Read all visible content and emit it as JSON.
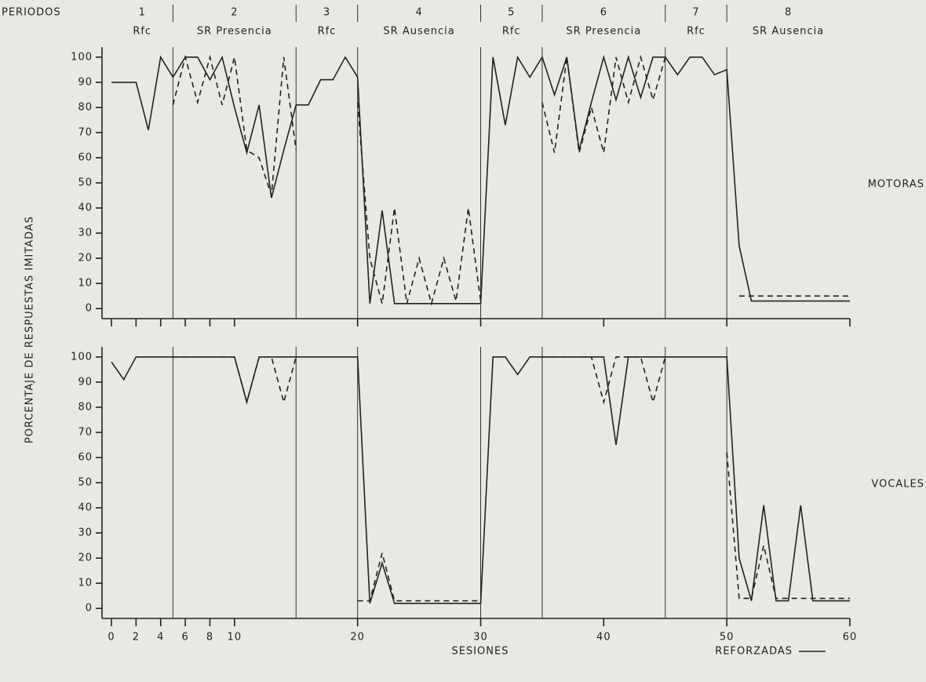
{
  "periods_header": "PERIODOS",
  "periods": [
    {
      "number": 1,
      "label": "Rfc"
    },
    {
      "number": 2,
      "label": "SR Presencia"
    },
    {
      "number": 3,
      "label": "Rfc"
    },
    {
      "number": 4,
      "label": "SR Ausencia"
    },
    {
      "number": 5,
      "label": "Rfc"
    },
    {
      "number": 6,
      "label": "SR Presencia"
    },
    {
      "number": 7,
      "label": "Rfc"
    },
    {
      "number": 8,
      "label": "SR Ausencia"
    }
  ],
  "period_boundaries": [
    5,
    15,
    20,
    30,
    35,
    45,
    50
  ],
  "y_label": "PORCENTAJE DE RESPUESTAS IMITADAS",
  "x_label": "SESIONES",
  "chart_data": [
    {
      "type": "line",
      "title": "MOTORAS",
      "x": [
        0,
        1,
        2,
        3,
        4,
        5,
        6,
        7,
        8,
        9,
        10,
        11,
        12,
        13,
        14,
        15,
        16,
        17,
        18,
        19,
        20,
        21,
        22,
        23,
        24,
        25,
        26,
        27,
        28,
        29,
        30,
        31,
        32,
        33,
        34,
        35,
        36,
        37,
        38,
        39,
        40,
        41,
        42,
        43,
        44,
        45,
        46,
        47,
        48,
        49,
        50,
        51,
        52,
        53,
        54,
        55,
        56,
        57,
        58,
        59,
        60
      ],
      "xlim": [
        0,
        60
      ],
      "ylim": [
        -4,
        104
      ],
      "yticks": [
        0,
        10,
        20,
        30,
        40,
        50,
        60,
        70,
        80,
        90,
        100
      ],
      "series": [
        {
          "name": "REFORZADAS",
          "color": "#222222",
          "style": "solid",
          "values": [
            90,
            90,
            90,
            71,
            100,
            92,
            100,
            100,
            91,
            100,
            80,
            62,
            81,
            44,
            63,
            81,
            81,
            91,
            91,
            100,
            92,
            2,
            39,
            2,
            2,
            2,
            2,
            2,
            2,
            2,
            2,
            100,
            73,
            100,
            92,
            100,
            85,
            100,
            63,
            82,
            100,
            83,
            100,
            84,
            100,
            100,
            93,
            100,
            100,
            93,
            95,
            25,
            3,
            3,
            3,
            3,
            3,
            3,
            3,
            3,
            3
          ]
        },
        {
          "color": "#222222",
          "style": "dashed",
          "values": [
            null,
            null,
            null,
            null,
            null,
            81,
            100,
            82,
            100,
            81,
            100,
            63,
            60,
            45,
            100,
            63,
            null,
            null,
            null,
            null,
            82,
            20,
            2,
            40,
            2,
            20,
            2,
            20,
            3,
            40,
            3,
            null,
            null,
            null,
            null,
            82,
            62,
            100,
            62,
            80,
            62,
            100,
            82,
            100,
            83,
            100,
            null,
            null,
            null,
            null,
            null,
            5,
            5,
            5,
            5,
            5,
            5,
            5,
            5,
            5,
            5
          ]
        }
      ]
    },
    {
      "type": "line",
      "title": "VOCALES",
      "x": [
        0,
        1,
        2,
        3,
        4,
        5,
        6,
        7,
        8,
        9,
        10,
        11,
        12,
        13,
        14,
        15,
        16,
        17,
        18,
        19,
        20,
        21,
        22,
        23,
        24,
        25,
        26,
        27,
        28,
        29,
        30,
        31,
        32,
        33,
        34,
        35,
        36,
        37,
        38,
        39,
        40,
        41,
        42,
        43,
        44,
        45,
        46,
        47,
        48,
        49,
        50,
        51,
        52,
        53,
        54,
        55,
        56,
        57,
        58,
        59,
        60
      ],
      "xlim": [
        0,
        60
      ],
      "xticks": [
        0,
        2,
        4,
        6,
        8,
        10,
        20,
        30,
        40,
        50,
        60
      ],
      "ylim": [
        -4,
        104
      ],
      "yticks": [
        0,
        10,
        20,
        30,
        40,
        50,
        60,
        70,
        80,
        90,
        100
      ],
      "series": [
        {
          "color": "#222222",
          "style": "solid",
          "values": [
            98,
            91,
            100,
            100,
            100,
            100,
            100,
            100,
            100,
            100,
            100,
            82,
            100,
            100,
            100,
            100,
            100,
            100,
            100,
            100,
            100,
            2,
            18,
            2,
            2,
            2,
            2,
            2,
            2,
            2,
            2,
            100,
            100,
            93,
            100,
            100,
            100,
            100,
            100,
            100,
            100,
            65,
            100,
            100,
            100,
            100,
            100,
            100,
            100,
            100,
            100,
            20,
            3,
            41,
            3,
            3,
            41,
            3,
            3,
            3,
            3
          ]
        },
        {
          "color": "#222222",
          "style": "dashed",
          "values": [
            null,
            null,
            null,
            null,
            null,
            100,
            100,
            100,
            100,
            100,
            100,
            82,
            100,
            100,
            82,
            100,
            null,
            null,
            null,
            null,
            3,
            3,
            22,
            3,
            3,
            3,
            3,
            3,
            3,
            3,
            3,
            null,
            null,
            null,
            null,
            100,
            100,
            100,
            100,
            100,
            82,
            100,
            100,
            100,
            82,
            100,
            null,
            null,
            null,
            null,
            62,
            4,
            4,
            25,
            4,
            4,
            4,
            4,
            4,
            4,
            4
          ]
        }
      ]
    }
  ]
}
